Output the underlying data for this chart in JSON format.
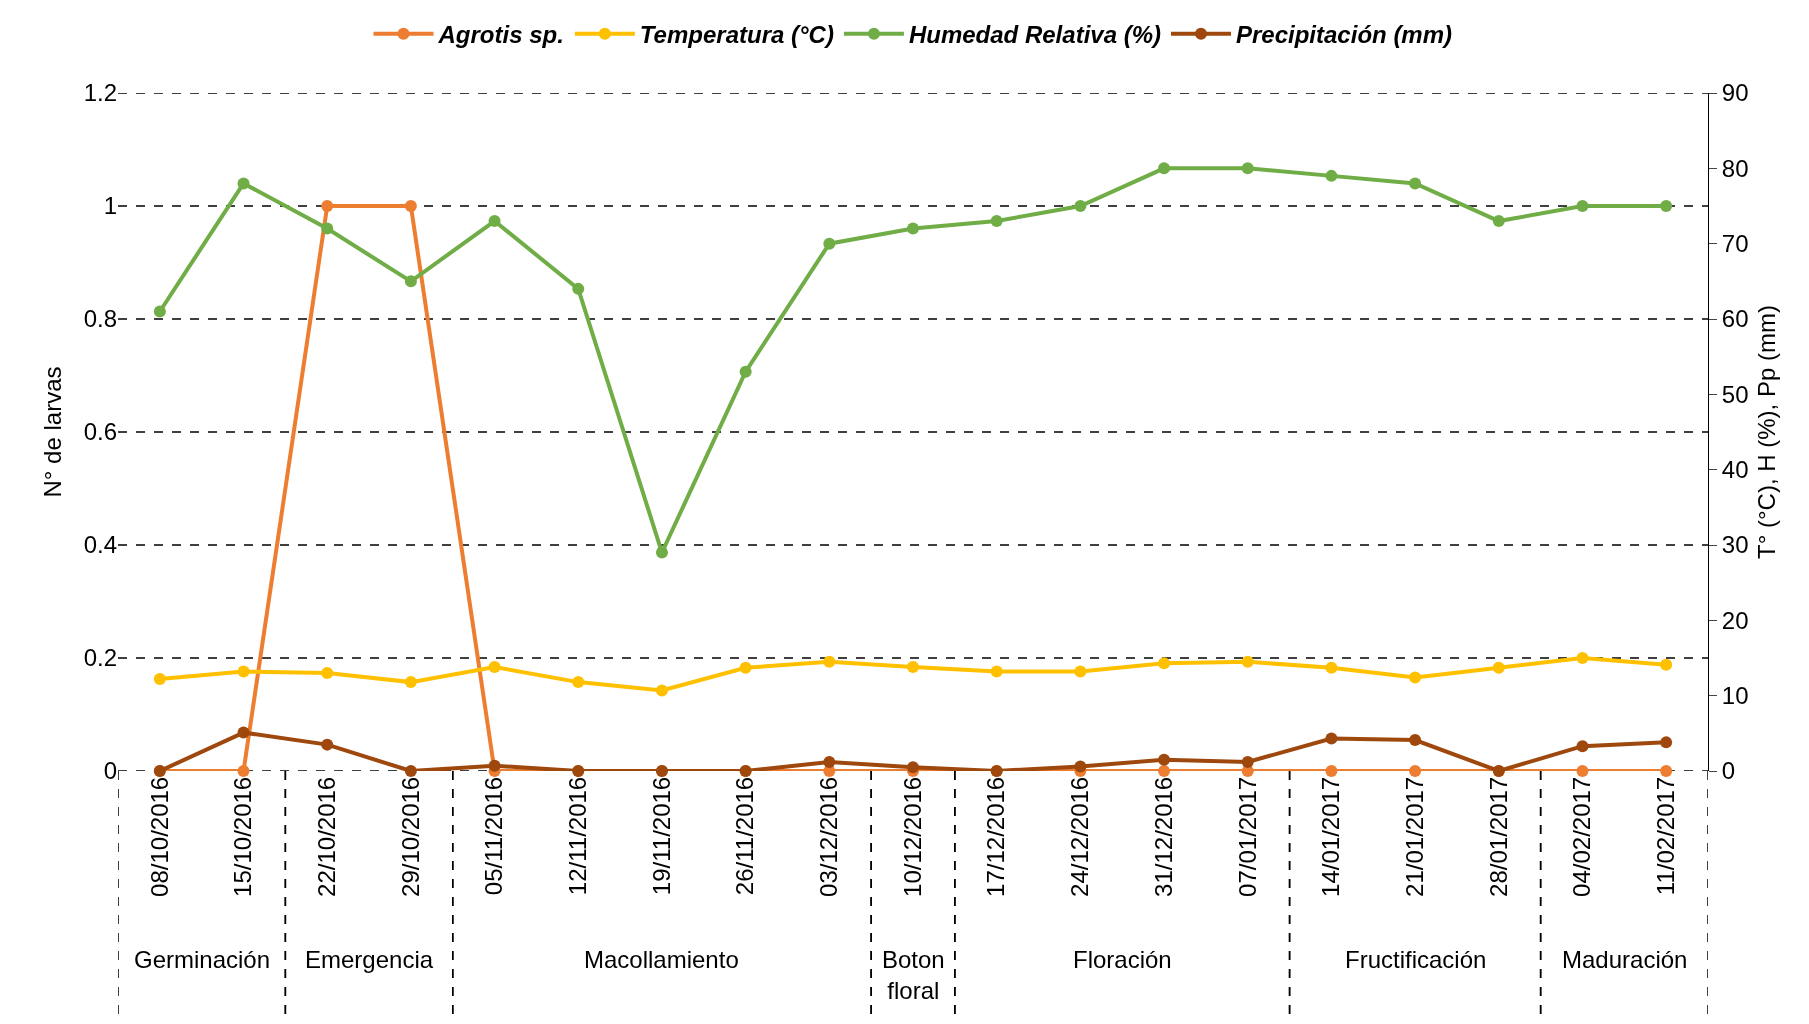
{
  "chart_data": {
    "type": "line",
    "ylabel": "N° de larvas",
    "y2label": "T° (°C), H (%), Pp (mm)",
    "categories": [
      "08/10/2016",
      "15/10/2016",
      "22/10/2016",
      "29/10/2016",
      "05/11/2016",
      "12/11/2016",
      "19/11/2016",
      "26/11/2016",
      "03/12/2016",
      "10/12/2016",
      "17/12/2016",
      "24/12/2016",
      "31/12/2016",
      "07/01/2017",
      "14/01/2017",
      "21/01/2017",
      "28/01/2017",
      "04/02/2017",
      "11/02/2017"
    ],
    "series": [
      {
        "name": "Agrotis sp.",
        "color": "#ed7d31",
        "values": [
          0,
          0,
          1,
          1,
          0,
          0,
          0,
          0,
          0,
          0,
          0,
          0,
          0,
          0,
          0,
          0,
          0,
          0,
          0
        ]
      },
      {
        "name": "Temperatura (°C)",
        "color": "#ffc000",
        "axis": "y2",
        "values": [
          12.2,
          13.2,
          13,
          11.8,
          13.8,
          11.8,
          10.7,
          13.7,
          14.5,
          13.8,
          13.2,
          13.2,
          14.3,
          14.5,
          13.7,
          12.4,
          13.7,
          15,
          14.1
        ]
      },
      {
        "name": "Humedad Relativa (%)",
        "color": "#70ad47",
        "axis": "y2",
        "values": [
          61,
          78,
          72,
          65,
          73,
          64,
          29,
          53,
          70,
          72,
          73,
          75,
          80,
          80,
          79,
          78,
          73,
          75,
          75
        ]
      },
      {
        "name": "Precipitación (mm)",
        "color": "#9e480e",
        "axis": "y2",
        "values": [
          0,
          5.1,
          3.5,
          0,
          0.7,
          0,
          0,
          0,
          1.2,
          0.5,
          0,
          0.6,
          1.5,
          1.2,
          4.3,
          4.1,
          0,
          3.3,
          3.8
        ]
      }
    ],
    "ylim": [
      0,
      1.2
    ],
    "yticks": [
      0,
      {
        "value": 0.2,
        "label": "0.2"
      },
      {
        "value": 0.4,
        "label": "0.4"
      },
      {
        "value": 0.6,
        "label": "0.6"
      },
      {
        "value": 0.8,
        "label": "0.8"
      },
      1,
      {
        "value": 1.2,
        "label": "1.2"
      }
    ],
    "y2lim": [
      0,
      90
    ],
    "y2ticks": [
      0,
      10,
      20,
      30,
      40,
      50,
      60,
      70,
      80,
      90
    ],
    "annotations": [
      "Germinación",
      "Emergencia",
      "Macollamiento",
      "Boton floral",
      "Floración",
      "Fructificación",
      "Maduración"
    ],
    "grid": "y",
    "legend": "top",
    "marker": "circle",
    "line_style": "solid"
  }
}
